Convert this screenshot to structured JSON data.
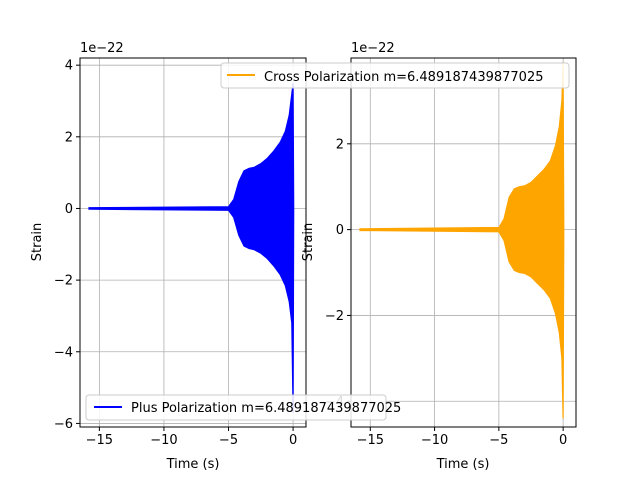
{
  "chart_data": [
    {
      "type": "line",
      "title": "",
      "xlabel": "Time (s)",
      "ylabel": "Strain",
      "offset_label": "1e−22",
      "xlim": [
        -16.5,
        1.0
      ],
      "ylim": [
        -6.1,
        4.2
      ],
      "xticks": [
        -15,
        -10,
        -5,
        0
      ],
      "xtick_labels": [
        "−15",
        "−10",
        "−5",
        "0"
      ],
      "yticks": [
        -6,
        -4,
        -2,
        0,
        2,
        4
      ],
      "ytick_labels": [
        "−6",
        "−4",
        "−2",
        "0",
        "2",
        "4"
      ],
      "grid": true,
      "legend_position": "lower-left",
      "series": [
        {
          "name": "Plus Polarization m=6.489187439877025",
          "color": "#0000ff",
          "x": [
            -15.8,
            -5.0,
            -4.6,
            -4.2,
            -3.8,
            -3.4,
            -3.0,
            -2.5,
            -2.0,
            -1.5,
            -1.0,
            -0.6,
            -0.3,
            -0.1,
            0.0,
            0.05
          ],
          "upper": [
            0.02,
            0.05,
            0.25,
            0.75,
            1.05,
            1.12,
            1.15,
            1.25,
            1.4,
            1.6,
            1.85,
            2.15,
            2.6,
            3.2,
            3.5,
            0.0
          ],
          "lower": [
            -0.02,
            -0.05,
            -0.25,
            -0.75,
            -1.05,
            -1.12,
            -1.15,
            -1.25,
            -1.4,
            -1.6,
            -1.85,
            -2.15,
            -2.6,
            -3.2,
            -5.7,
            0.0
          ]
        }
      ]
    },
    {
      "type": "line",
      "title": "",
      "xlabel": "Time (s)",
      "ylabel": "Strain",
      "offset_label": "1e−22",
      "xlim": [
        -16.5,
        1.0
      ],
      "ylim": [
        -4.6,
        4.0
      ],
      "xticks": [
        -15,
        -10,
        -5,
        0
      ],
      "xtick_labels": [
        "−15",
        "−10",
        "−5",
        "0"
      ],
      "yticks": [
        -4,
        -2,
        0,
        2
      ],
      "ytick_labels": [
        "−4",
        "−2",
        "0",
        "2"
      ],
      "grid": true,
      "legend_position": "upper-right",
      "series": [
        {
          "name": "Cross Polarization m=6.489187439877025",
          "color": "#ffa500",
          "x": [
            -15.8,
            -5.0,
            -4.6,
            -4.2,
            -3.8,
            -3.4,
            -3.0,
            -2.5,
            -2.0,
            -1.5,
            -1.0,
            -0.6,
            -0.3,
            -0.1,
            0.0,
            0.05
          ],
          "upper": [
            0.02,
            0.05,
            0.25,
            0.75,
            0.95,
            1.0,
            1.02,
            1.1,
            1.25,
            1.4,
            1.6,
            1.95,
            2.4,
            3.0,
            3.9,
            0.0
          ],
          "lower": [
            -0.02,
            -0.05,
            -0.25,
            -0.75,
            -0.95,
            -1.0,
            -1.02,
            -1.1,
            -1.25,
            -1.4,
            -1.6,
            -1.95,
            -2.4,
            -3.0,
            -4.4,
            0.0
          ]
        }
      ]
    }
  ]
}
